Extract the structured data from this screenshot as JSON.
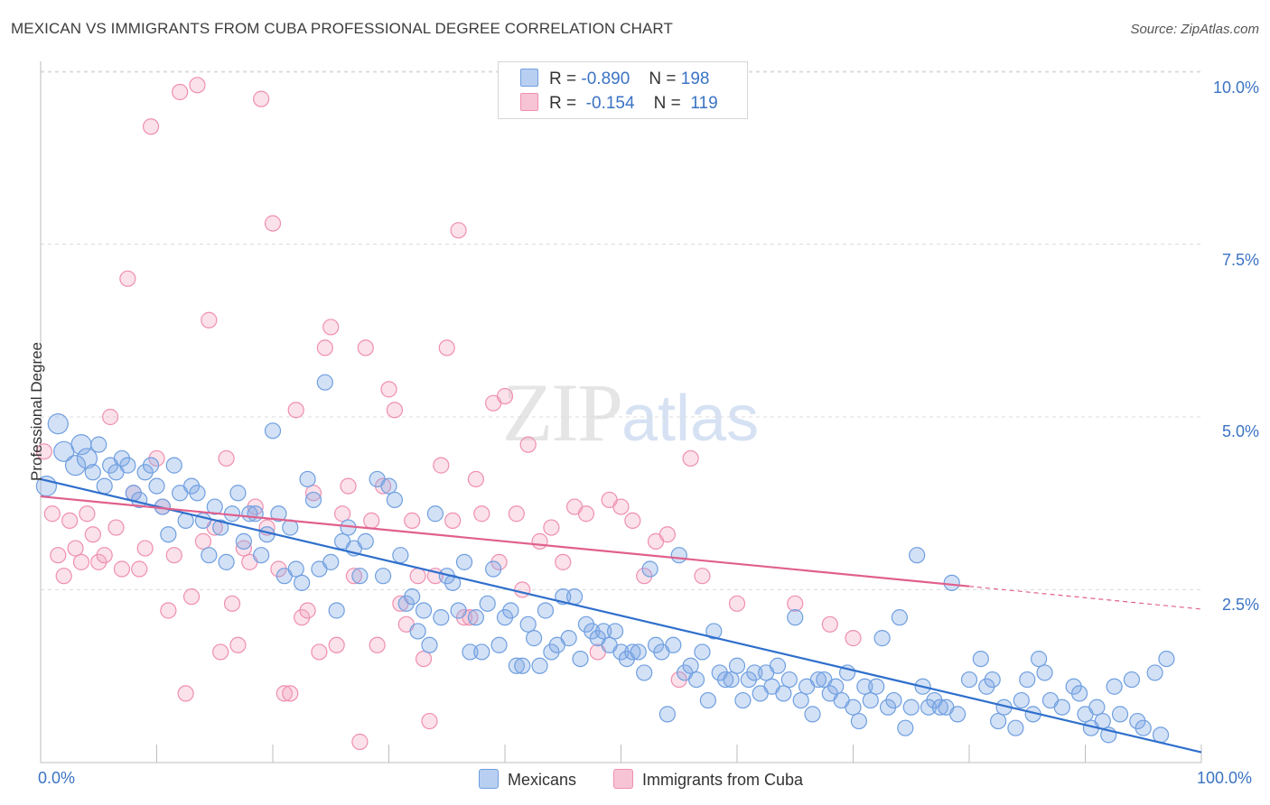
{
  "title": "MEXICAN VS IMMIGRANTS FROM CUBA PROFESSIONAL DEGREE CORRELATION CHART",
  "source": "Source: ZipAtlas.com",
  "watermark": {
    "zip": "ZIP",
    "atlas": "atlas"
  },
  "legend": {
    "rows": [
      {
        "r_label": "R =",
        "r_value": "-0.890",
        "n_label": "N =",
        "n_value": "198"
      },
      {
        "r_label": "R =",
        "r_value": "-0.154",
        "n_label": "N =",
        "n_value": "119"
      }
    ]
  },
  "colors": {
    "mexicans": "#6f9fe0",
    "cuba": "#ef8fb0",
    "mex_line": "#2f6fcc",
    "cuba_line": "#e0608d",
    "tick_text": "#3b73c4"
  },
  "chart_data": {
    "type": "scatter",
    "title": "MEXICAN VS IMMIGRANTS FROM CUBA PROFESSIONAL DEGREE CORRELATION CHART",
    "xlabel": "",
    "ylabel": "Professional Degree",
    "xlim": [
      0,
      100
    ],
    "ylim": [
      0,
      10.5
    ],
    "x_ticks": [
      "0.0%",
      "100.0%"
    ],
    "y_ticks": [
      {
        "value": 2.5,
        "label": "2.5%"
      },
      {
        "value": 5.0,
        "label": "5.0%"
      },
      {
        "value": 7.5,
        "label": "7.5%"
      },
      {
        "value": 10.0,
        "label": "10.0%"
      }
    ],
    "grid": true,
    "legend_position": "top-center",
    "series": [
      {
        "name": "Mexicans",
        "trend": {
          "x0": 0,
          "y0": 4.1,
          "x1": 100,
          "y1": 0.15
        },
        "points": [
          [
            0.5,
            4.0
          ],
          [
            1.5,
            4.9
          ],
          [
            2.0,
            4.5
          ],
          [
            3.0,
            4.3
          ],
          [
            3.5,
            4.6
          ],
          [
            4.0,
            4.4
          ],
          [
            4.5,
            4.2
          ],
          [
            5.0,
            4.6
          ],
          [
            5.5,
            4.0
          ],
          [
            6.0,
            4.3
          ],
          [
            6.5,
            4.2
          ],
          [
            7.0,
            4.4
          ],
          [
            7.5,
            4.3
          ],
          [
            8.0,
            3.9
          ],
          [
            8.5,
            3.8
          ],
          [
            9.0,
            4.2
          ],
          [
            9.5,
            4.3
          ],
          [
            10.0,
            4.0
          ],
          [
            10.5,
            3.7
          ],
          [
            11.0,
            3.3
          ],
          [
            11.5,
            4.3
          ],
          [
            12.0,
            3.9
          ],
          [
            12.5,
            3.5
          ],
          [
            13.0,
            4.0
          ],
          [
            13.5,
            3.9
          ],
          [
            14.0,
            3.5
          ],
          [
            14.5,
            3.0
          ],
          [
            15.0,
            3.7
          ],
          [
            15.5,
            3.4
          ],
          [
            16.0,
            2.9
          ],
          [
            16.5,
            3.6
          ],
          [
            17.0,
            3.9
          ],
          [
            17.5,
            3.2
          ],
          [
            18.0,
            3.6
          ],
          [
            18.5,
            3.6
          ],
          [
            19.0,
            3.0
          ],
          [
            19.5,
            3.3
          ],
          [
            20.0,
            4.8
          ],
          [
            20.5,
            3.6
          ],
          [
            21.0,
            2.7
          ],
          [
            21.5,
            3.4
          ],
          [
            22.0,
            2.8
          ],
          [
            22.5,
            2.6
          ],
          [
            23.0,
            4.1
          ],
          [
            23.5,
            3.8
          ],
          [
            24.0,
            2.8
          ],
          [
            24.5,
            5.5
          ],
          [
            25.0,
            2.9
          ],
          [
            25.5,
            2.2
          ],
          [
            26.0,
            3.2
          ],
          [
            26.5,
            3.4
          ],
          [
            27.0,
            3.1
          ],
          [
            27.5,
            2.7
          ],
          [
            28.0,
            3.2
          ],
          [
            29.0,
            4.1
          ],
          [
            29.5,
            2.7
          ],
          [
            30.0,
            4.0
          ],
          [
            30.5,
            3.8
          ],
          [
            31.0,
            3.0
          ],
          [
            31.5,
            2.3
          ],
          [
            32.0,
            2.4
          ],
          [
            32.5,
            1.9
          ],
          [
            33.0,
            2.2
          ],
          [
            33.5,
            1.7
          ],
          [
            34.0,
            3.6
          ],
          [
            34.5,
            2.1
          ],
          [
            35.0,
            2.7
          ],
          [
            35.5,
            2.6
          ],
          [
            36.0,
            2.2
          ],
          [
            36.5,
            2.9
          ],
          [
            37.0,
            1.6
          ],
          [
            37.5,
            2.1
          ],
          [
            38.0,
            1.6
          ],
          [
            38.5,
            2.3
          ],
          [
            39.0,
            2.8
          ],
          [
            39.5,
            1.7
          ],
          [
            40.0,
            2.1
          ],
          [
            40.5,
            2.2
          ],
          [
            41.0,
            1.4
          ],
          [
            41.5,
            1.4
          ],
          [
            42.0,
            2.0
          ],
          [
            42.5,
            1.8
          ],
          [
            43.0,
            1.4
          ],
          [
            43.5,
            2.2
          ],
          [
            44.0,
            1.6
          ],
          [
            44.5,
            1.7
          ],
          [
            45.0,
            2.4
          ],
          [
            45.5,
            1.8
          ],
          [
            46.0,
            2.4
          ],
          [
            46.5,
            1.5
          ],
          [
            47.0,
            2.0
          ],
          [
            47.5,
            1.9
          ],
          [
            48.0,
            1.8
          ],
          [
            48.5,
            1.9
          ],
          [
            49.0,
            1.7
          ],
          [
            49.5,
            1.9
          ],
          [
            50.0,
            1.6
          ],
          [
            50.5,
            1.5
          ],
          [
            51.0,
            1.6
          ],
          [
            51.5,
            1.6
          ],
          [
            52.0,
            1.3
          ],
          [
            52.5,
            2.8
          ],
          [
            53.0,
            1.7
          ],
          [
            53.5,
            1.6
          ],
          [
            54.0,
            0.7
          ],
          [
            54.5,
            1.7
          ],
          [
            55.0,
            3.0
          ],
          [
            55.5,
            1.3
          ],
          [
            56.0,
            1.4
          ],
          [
            56.5,
            1.2
          ],
          [
            57.0,
            1.6
          ],
          [
            57.5,
            0.9
          ],
          [
            58.0,
            1.9
          ],
          [
            58.5,
            1.3
          ],
          [
            59.0,
            1.2
          ],
          [
            59.5,
            1.2
          ],
          [
            60.0,
            1.4
          ],
          [
            60.5,
            0.9
          ],
          [
            61.0,
            1.2
          ],
          [
            61.5,
            1.3
          ],
          [
            62.0,
            1.0
          ],
          [
            62.5,
            1.3
          ],
          [
            63.0,
            1.1
          ],
          [
            63.5,
            1.4
          ],
          [
            64.0,
            1.0
          ],
          [
            64.5,
            1.2
          ],
          [
            65.0,
            2.1
          ],
          [
            65.5,
            0.9
          ],
          [
            66.0,
            1.1
          ],
          [
            66.5,
            0.7
          ],
          [
            67.0,
            1.2
          ],
          [
            67.5,
            1.2
          ],
          [
            68.0,
            1.0
          ],
          [
            68.5,
            1.1
          ],
          [
            69.0,
            0.9
          ],
          [
            69.5,
            1.3
          ],
          [
            70.0,
            0.8
          ],
          [
            70.5,
            0.6
          ],
          [
            71.0,
            1.1
          ],
          [
            71.5,
            0.9
          ],
          [
            72.0,
            1.1
          ],
          [
            72.5,
            1.8
          ],
          [
            73.0,
            0.8
          ],
          [
            73.5,
            0.9
          ],
          [
            74.0,
            2.1
          ],
          [
            74.5,
            0.5
          ],
          [
            75.0,
            0.8
          ],
          [
            75.5,
            3.0
          ],
          [
            76.0,
            1.1
          ],
          [
            76.5,
            0.8
          ],
          [
            77.0,
            0.9
          ],
          [
            77.5,
            0.8
          ],
          [
            78.0,
            0.8
          ],
          [
            78.5,
            2.6
          ],
          [
            79.0,
            0.7
          ],
          [
            80.0,
            1.2
          ],
          [
            81.0,
            1.5
          ],
          [
            81.5,
            1.1
          ],
          [
            82.0,
            1.2
          ],
          [
            82.5,
            0.6
          ],
          [
            83.0,
            0.8
          ],
          [
            84.0,
            0.5
          ],
          [
            84.5,
            0.9
          ],
          [
            85.0,
            1.2
          ],
          [
            85.5,
            0.7
          ],
          [
            86.0,
            1.5
          ],
          [
            86.5,
            1.3
          ],
          [
            87.0,
            0.9
          ],
          [
            88.0,
            0.8
          ],
          [
            89.0,
            1.1
          ],
          [
            89.5,
            1.0
          ],
          [
            90.0,
            0.7
          ],
          [
            90.5,
            0.5
          ],
          [
            91.0,
            0.8
          ],
          [
            91.5,
            0.6
          ],
          [
            92.0,
            0.4
          ],
          [
            92.5,
            1.1
          ],
          [
            93.0,
            0.7
          ],
          [
            94.0,
            1.2
          ],
          [
            94.5,
            0.6
          ],
          [
            95.0,
            0.5
          ],
          [
            96.0,
            1.3
          ],
          [
            96.5,
            0.4
          ],
          [
            97.0,
            1.5
          ]
        ]
      },
      {
        "name": "Immigrants from Cuba",
        "trend": {
          "x0": 0,
          "y0": 3.85,
          "x1": 80,
          "y1": 2.55,
          "dash_to_x": 100,
          "dash_to_y": 2.22
        },
        "points": [
          [
            0.3,
            4.5
          ],
          [
            1.0,
            3.6
          ],
          [
            1.5,
            3.0
          ],
          [
            2.0,
            2.7
          ],
          [
            2.5,
            3.5
          ],
          [
            3.0,
            3.1
          ],
          [
            3.5,
            2.9
          ],
          [
            4.0,
            3.6
          ],
          [
            4.5,
            3.3
          ],
          [
            5.0,
            2.9
          ],
          [
            5.5,
            3.0
          ],
          [
            6.0,
            5.0
          ],
          [
            6.5,
            3.4
          ],
          [
            7.0,
            2.8
          ],
          [
            7.5,
            7.0
          ],
          [
            8.0,
            3.9
          ],
          [
            8.5,
            2.8
          ],
          [
            9.0,
            3.1
          ],
          [
            9.5,
            9.2
          ],
          [
            10.0,
            4.4
          ],
          [
            10.5,
            3.7
          ],
          [
            11.0,
            2.2
          ],
          [
            11.5,
            3.0
          ],
          [
            12.0,
            9.7
          ],
          [
            12.5,
            1.0
          ],
          [
            13.0,
            2.4
          ],
          [
            13.5,
            9.8
          ],
          [
            14.0,
            3.2
          ],
          [
            14.5,
            6.4
          ],
          [
            15.0,
            3.4
          ],
          [
            15.5,
            1.6
          ],
          [
            16.0,
            4.4
          ],
          [
            16.5,
            2.3
          ],
          [
            17.0,
            1.7
          ],
          [
            17.5,
            3.1
          ],
          [
            18.0,
            2.9
          ],
          [
            18.5,
            3.7
          ],
          [
            19.0,
            9.6
          ],
          [
            19.5,
            3.4
          ],
          [
            20.0,
            7.8
          ],
          [
            20.5,
            2.8
          ],
          [
            21.0,
            1.0
          ],
          [
            21.5,
            1.0
          ],
          [
            22.0,
            5.1
          ],
          [
            22.5,
            2.1
          ],
          [
            23.0,
            2.2
          ],
          [
            23.5,
            3.9
          ],
          [
            24.0,
            1.6
          ],
          [
            24.5,
            6.0
          ],
          [
            25.0,
            6.3
          ],
          [
            25.5,
            1.7
          ],
          [
            26.0,
            3.6
          ],
          [
            26.5,
            4.0
          ],
          [
            27.0,
            2.7
          ],
          [
            27.5,
            0.3
          ],
          [
            28.0,
            6.0
          ],
          [
            28.5,
            3.5
          ],
          [
            29.0,
            1.7
          ],
          [
            29.5,
            4.0
          ],
          [
            30.0,
            5.4
          ],
          [
            30.5,
            5.1
          ],
          [
            31.0,
            2.3
          ],
          [
            31.5,
            2.0
          ],
          [
            32.0,
            3.5
          ],
          [
            32.5,
            2.7
          ],
          [
            33.0,
            1.5
          ],
          [
            33.5,
            0.6
          ],
          [
            34.0,
            2.7
          ],
          [
            34.5,
            4.3
          ],
          [
            35.0,
            6.0
          ],
          [
            35.5,
            3.5
          ],
          [
            36.0,
            7.7
          ],
          [
            36.5,
            2.1
          ],
          [
            37.0,
            2.1
          ],
          [
            37.5,
            4.1
          ],
          [
            38.0,
            3.6
          ],
          [
            39.0,
            5.2
          ],
          [
            39.5,
            2.9
          ],
          [
            40.0,
            5.3
          ],
          [
            41.0,
            3.6
          ],
          [
            41.5,
            2.5
          ],
          [
            42.0,
            4.6
          ],
          [
            43.0,
            3.2
          ],
          [
            44.0,
            3.4
          ],
          [
            45.0,
            2.9
          ],
          [
            46.0,
            3.7
          ],
          [
            47.0,
            3.6
          ],
          [
            48.0,
            1.6
          ],
          [
            49.0,
            3.8
          ],
          [
            50.0,
            3.7
          ],
          [
            51.0,
            3.5
          ],
          [
            52.0,
            2.7
          ],
          [
            53.0,
            3.2
          ],
          [
            54.0,
            3.3
          ],
          [
            55.0,
            1.2
          ],
          [
            56.0,
            4.4
          ],
          [
            57.0,
            2.7
          ],
          [
            60.0,
            2.3
          ],
          [
            65.0,
            2.3
          ],
          [
            68.0,
            2.0
          ],
          [
            70.0,
            1.8
          ]
        ]
      }
    ]
  },
  "bottom_legend": [
    {
      "label": "Mexicans"
    },
    {
      "label": "Immigrants from Cuba"
    }
  ]
}
